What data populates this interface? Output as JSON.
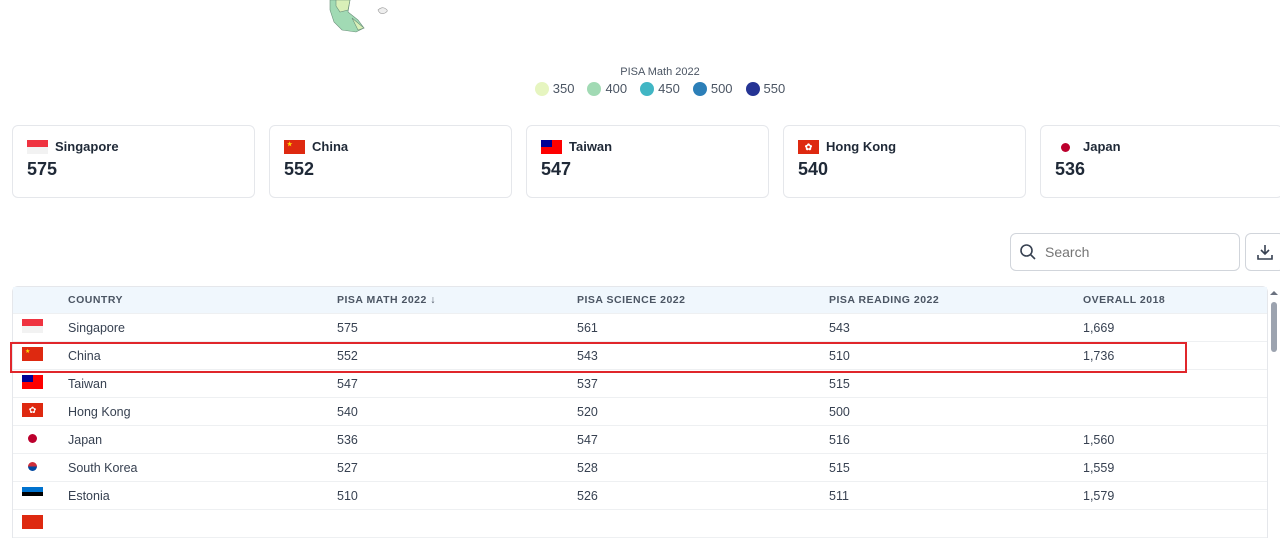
{
  "legend": {
    "title": "PISA Math 2022",
    "items": [
      {
        "label": "350",
        "color": "#e6f5c0"
      },
      {
        "label": "400",
        "color": "#a1dab4"
      },
      {
        "label": "450",
        "color": "#41b6c4"
      },
      {
        "label": "500",
        "color": "#2c7fb8"
      },
      {
        "label": "550",
        "color": "#253494"
      }
    ]
  },
  "cards": [
    {
      "country": "Singapore",
      "value": "575",
      "flag": "sg"
    },
    {
      "country": "China",
      "value": "552",
      "flag": "cn"
    },
    {
      "country": "Taiwan",
      "value": "547",
      "flag": "tw"
    },
    {
      "country": "Hong Kong",
      "value": "540",
      "flag": "hk"
    },
    {
      "country": "Japan",
      "value": "536",
      "flag": "jp"
    }
  ],
  "search": {
    "placeholder": "Search"
  },
  "table": {
    "headers": [
      "COUNTRY",
      "PISA MATH 2022 ↓",
      "PISA SCIENCE 2022",
      "PISA READING 2022",
      "OVERALL 2018"
    ],
    "rows": [
      {
        "flag": "sg",
        "country": "Singapore",
        "math": "575",
        "science": "561",
        "reading": "543",
        "overall": "1,669"
      },
      {
        "flag": "cn",
        "country": "China",
        "math": "552",
        "science": "543",
        "reading": "510",
        "overall": "1,736"
      },
      {
        "flag": "tw",
        "country": "Taiwan",
        "math": "547",
        "science": "537",
        "reading": "515",
        "overall": ""
      },
      {
        "flag": "hk",
        "country": "Hong Kong",
        "math": "540",
        "science": "520",
        "reading": "500",
        "overall": ""
      },
      {
        "flag": "jp",
        "country": "Japan",
        "math": "536",
        "science": "547",
        "reading": "516",
        "overall": "1,560"
      },
      {
        "flag": "kr",
        "country": "South Korea",
        "math": "527",
        "science": "528",
        "reading": "515",
        "overall": "1,559"
      },
      {
        "flag": "ee",
        "country": "Estonia",
        "math": "510",
        "science": "526",
        "reading": "511",
        "overall": "1,579"
      }
    ],
    "highlighted_row": "China"
  }
}
